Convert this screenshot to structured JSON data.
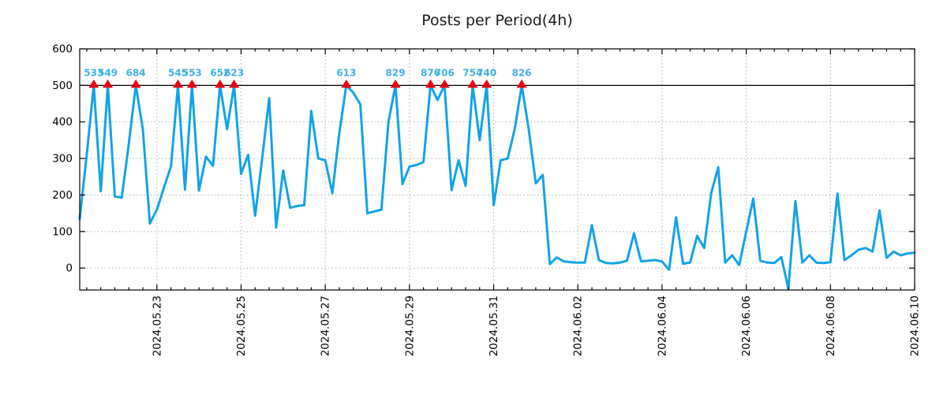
{
  "title": "Posts per Period(4h)",
  "colors": {
    "line": "#12a3e8",
    "peak_label": "#3fb1e8",
    "peak_marker": "#e8000f",
    "grid": "#b0b0b0",
    "axis": "#000000",
    "clip_line": "#000000",
    "title_color": "#1a1a1a",
    "tick_label": "#000000",
    "background": "#ffffff"
  },
  "chart_data": {
    "type": "line",
    "title": "Posts per Period(4h)",
    "period_hours": 4,
    "clip_threshold": 500,
    "ylim": [
      -60,
      600
    ],
    "yticks": [
      0,
      100,
      200,
      300,
      400,
      500,
      600
    ],
    "grid": true,
    "legend": null,
    "x_tick_labels": [
      "2024.05.23",
      "2024.05.25",
      "2024.05.27",
      "2024.05.29",
      "2024.05.31",
      "2024.06.02",
      "2024.06.04",
      "2024.06.06",
      "2024.06.08",
      "2024.06.10"
    ],
    "x_tick_indices": [
      11,
      23,
      35,
      47,
      59,
      71,
      83,
      95,
      107,
      119
    ],
    "x_minor_tick_every": 2,
    "peak_values_labeled": [
      533,
      549,
      684,
      545,
      553,
      652,
      623,
      613,
      829,
      876,
      706,
      754,
      740,
      826
    ],
    "values": [
      135,
      310,
      533,
      210,
      549,
      196,
      193,
      340,
      684,
      380,
      122,
      160,
      220,
      278,
      545,
      215,
      553,
      212,
      305,
      280,
      652,
      380,
      623,
      258,
      310,
      143,
      300,
      465,
      111,
      267,
      165,
      170,
      172,
      430,
      300,
      295,
      205,
      370,
      613,
      480,
      448,
      150,
      155,
      160,
      400,
      829,
      230,
      278,
      282,
      290,
      876,
      460,
      706,
      213,
      295,
      225,
      754,
      350,
      740,
      172,
      295,
      300,
      380,
      826,
      380,
      232,
      255,
      11,
      29,
      18,
      16,
      15,
      15,
      117,
      22,
      14,
      13,
      15,
      20,
      95,
      18,
      20,
      22,
      18,
      -5,
      139,
      12,
      15,
      88,
      55,
      205,
      276,
      15,
      35,
      8,
      100,
      190,
      20,
      15,
      14,
      30,
      -57,
      183,
      15,
      35,
      15,
      14,
      16,
      204,
      22,
      35,
      50,
      55,
      45,
      158,
      28,
      45,
      35,
      40,
      42
    ]
  }
}
